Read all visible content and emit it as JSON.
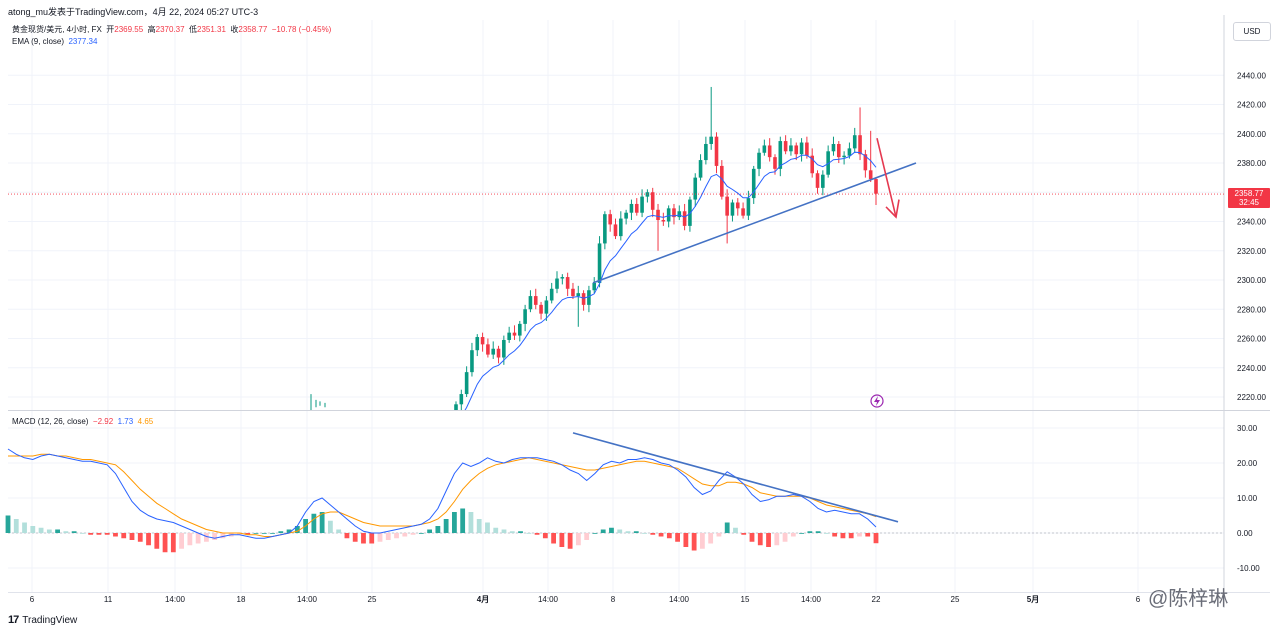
{
  "header": {
    "published_by": "atong_mu发表于TradingView.com，4月 22, 2024 05:27 UTC-3"
  },
  "legend_main": {
    "symbol": "黄金现货/美元, 4小时, FX",
    "open_label": "开",
    "open_value": "2369.55",
    "high_label": "高",
    "high_value": "2370.37",
    "low_label": "低",
    "low_value": "2351.31",
    "close_label": "收",
    "close_value": "2358.77",
    "change": "−10.78 (−0.45%)"
  },
  "legend_ema": {
    "label": "EMA (9, close)",
    "value": "2377.34"
  },
  "legend_macd": {
    "label": "MACD (12, 26, close)",
    "hist": "−2.92",
    "macd": "1.73",
    "signal": "4.65"
  },
  "currency_button": "USD",
  "price_tag": {
    "value": "2358.77",
    "countdown": "32:45"
  },
  "footer": {
    "logo": "17",
    "brand": "TradingView"
  },
  "watermark": "@陈梓琳",
  "colors": {
    "up": "#089981",
    "down": "#f23645",
    "ema": "#2962ff",
    "macd": "#2962ff",
    "signal": "#ff9800",
    "trendline": "#4472c4",
    "arrow": "#e53950",
    "grid": "#f0f3fa"
  },
  "chart_data": [
    {
      "type": "candlestick",
      "title": "黄金现货/美元, 4小时, FX",
      "ylim": [
        2210,
        2450
      ],
      "yticks": [
        2220,
        2240,
        2260,
        2280,
        2300,
        2320,
        2340,
        2360,
        2380,
        2400,
        2420,
        2440
      ],
      "xticks": [
        "6",
        "11",
        "14:00",
        "18",
        "14:00",
        "25",
        "4月",
        "14:00",
        "8",
        "14:00",
        "15",
        "14:00",
        "22",
        "25",
        "5月",
        "6"
      ],
      "last_price": 2358.77,
      "ema9_last": 2377.34,
      "closes": [
        2215,
        2222,
        2237,
        2252,
        2261,
        2256,
        2249,
        2253,
        2247,
        2259,
        2264,
        2262,
        2270,
        2280,
        2289,
        2283,
        2277,
        2286,
        2294,
        2301,
        2302,
        2294,
        2289,
        2291,
        2283,
        2293,
        2298,
        2325,
        2345,
        2338,
        2330,
        2342,
        2346,
        2352,
        2346,
        2357,
        2360,
        2348,
        2341,
        2340,
        2349,
        2343,
        2347,
        2337,
        2355,
        2370,
        2382,
        2393,
        2398,
        2378,
        2357,
        2344,
        2353,
        2349,
        2344,
        2356,
        2376,
        2387,
        2392,
        2384,
        2376,
        2395,
        2388,
        2392,
        2386,
        2394,
        2385,
        2373,
        2363,
        2372,
        2388,
        2393,
        2384,
        2385,
        2390,
        2399,
        2386,
        2375,
        2369,
        2359
      ],
      "annotations": [
        "rising trendline under price lows",
        "downward red arrow from 2397 to 2343"
      ]
    },
    {
      "type": "macd",
      "title": "MACD (12, 26, close)",
      "ylim": [
        -13,
        33
      ],
      "yticks": [
        -10,
        0,
        10,
        20,
        30
      ],
      "hist_last": -2.92,
      "macd_last": 1.73,
      "signal_last": 4.65,
      "macd": [
        24,
        22.5,
        21.5,
        21,
        22,
        22.5,
        22,
        21.5,
        21,
        20.5,
        20.5,
        20,
        19.5,
        17,
        13,
        9,
        6.5,
        5,
        4,
        3.5,
        3,
        2,
        1,
        0,
        -1,
        -1.5,
        -1,
        -0.5,
        -0.5,
        -1,
        -1.5,
        -1.5,
        -1,
        -0.5,
        0,
        2,
        6,
        9,
        10,
        8,
        6,
        4,
        2,
        0.5,
        0,
        0,
        0.5,
        1,
        1.5,
        2,
        2.5,
        4,
        7,
        12,
        17,
        20,
        19,
        20,
        21.5,
        20.5,
        20,
        21,
        21.5,
        21.5,
        21.5,
        21,
        20.5,
        19.5,
        18,
        17,
        15,
        17,
        19.5,
        20.5,
        20,
        21,
        21,
        21.5,
        21,
        20,
        19.5,
        18,
        16,
        13,
        11,
        12,
        15,
        17.5,
        16,
        14,
        11,
        9,
        9.5,
        10.5,
        10.5,
        11,
        10.5,
        9,
        7,
        6,
        6.5,
        6,
        5.5,
        5.5,
        4,
        1.7
      ],
      "signal": [
        22,
        22,
        22,
        22,
        22.5,
        22.5,
        22,
        22,
        21.5,
        21,
        21,
        20.5,
        20,
        19.5,
        17.5,
        15,
        12.5,
        10.5,
        8.5,
        7,
        5.5,
        4,
        3,
        2,
        1,
        0.5,
        0,
        0,
        0,
        -0.5,
        -0.5,
        -1,
        -1,
        -0.5,
        0,
        0.5,
        2,
        4,
        5.5,
        6,
        6,
        5,
        4,
        3,
        2.5,
        2,
        2,
        2,
        2,
        2,
        2.5,
        3,
        4,
        6,
        9,
        12.5,
        15,
        17,
        18.5,
        19.5,
        20,
        20.5,
        21,
        21.5,
        21,
        20.5,
        20,
        19.5,
        19,
        18.5,
        18,
        18,
        18.5,
        19,
        19.5,
        20,
        20.5,
        20.5,
        20,
        19.5,
        19,
        18.5,
        17,
        15.5,
        14,
        13.5,
        13.5,
        14.5,
        14.5,
        14,
        13,
        11.5,
        11,
        10.5,
        10.5,
        10.5,
        10.5,
        10,
        9,
        8,
        7.5,
        7,
        6.5,
        6,
        5.5,
        4.65
      ],
      "hist": [
        5,
        4,
        3,
        2,
        1.5,
        1,
        1,
        0.5,
        0.5,
        0,
        -0.5,
        -0.5,
        -0.5,
        -1,
        -1.5,
        -2,
        -2.5,
        -3.5,
        -4.5,
        -5.5,
        -5.5,
        -4.5,
        -3.5,
        -3,
        -2.5,
        -2,
        -1.5,
        -1,
        -0.5,
        -0.5,
        0,
        0,
        0,
        0.5,
        1,
        2,
        4,
        5.5,
        6,
        3.5,
        1,
        -1.5,
        -2.5,
        -3,
        -3,
        -2.5,
        -2,
        -1.5,
        -1,
        -0.5,
        0,
        1,
        2,
        4,
        6,
        7,
        6,
        4,
        3,
        1.5,
        1,
        0.5,
        0.5,
        0,
        -0.5,
        -1.5,
        -3,
        -4,
        -4.5,
        -3.5,
        -2,
        0,
        1,
        1.5,
        1,
        0.5,
        0.5,
        0,
        -0.5,
        -1,
        -1.5,
        -2.5,
        -4,
        -5,
        -4.5,
        -3,
        -1,
        3,
        1.5,
        -0.5,
        -2.5,
        -3.5,
        -4,
        -3.5,
        -2.5,
        -1,
        0,
        0.5,
        0.5,
        0,
        -1,
        -1.5,
        -1.5,
        -1,
        -1,
        -2.92
      ],
      "annotations": [
        "descending trendline over MACD peaks"
      ]
    }
  ]
}
